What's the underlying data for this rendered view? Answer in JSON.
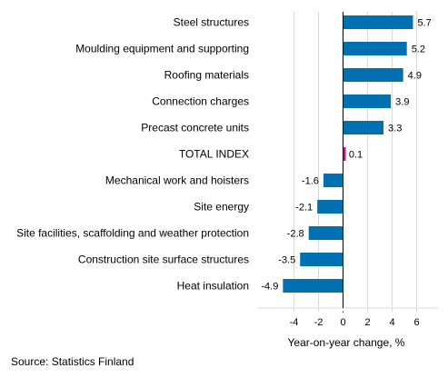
{
  "chart_data": {
    "type": "bar",
    "orientation": "horizontal",
    "categories": [
      "Steel structures",
      "Moulding equipment and supporting",
      "Roofing materials",
      "Connection charges",
      "Precast concrete units",
      "TOTAL INDEX",
      "Mechanical work and hoisters",
      "Site energy",
      "Site facilities, scaffolding and weather protection",
      "Construction site surface structures",
      "Heat insulation"
    ],
    "values": [
      5.7,
      5.2,
      4.9,
      3.9,
      3.3,
      0.1,
      -1.6,
      -2.1,
      -2.8,
      -3.5,
      -4.9
    ],
    "value_labels": [
      "5.7",
      "5.2",
      "4.9",
      "3.9",
      "3.3",
      "0.1",
      "-1.6",
      "-2.1",
      "-2.8",
      "-3.5",
      "-4.9"
    ],
    "highlight_category": "TOTAL INDEX",
    "colors": {
      "bar": "#0070b0",
      "highlight": "#a5237d",
      "grid": "#d9d9d9",
      "axis": "#000000"
    },
    "xlabel": "Year-on-year change, %",
    "xticks": [
      "-4",
      "-2",
      "0",
      "2",
      "4",
      "6"
    ],
    "xlim": [
      -6.6,
      7.5
    ],
    "grid": true
  },
  "source": "Source: Statistics Finland"
}
